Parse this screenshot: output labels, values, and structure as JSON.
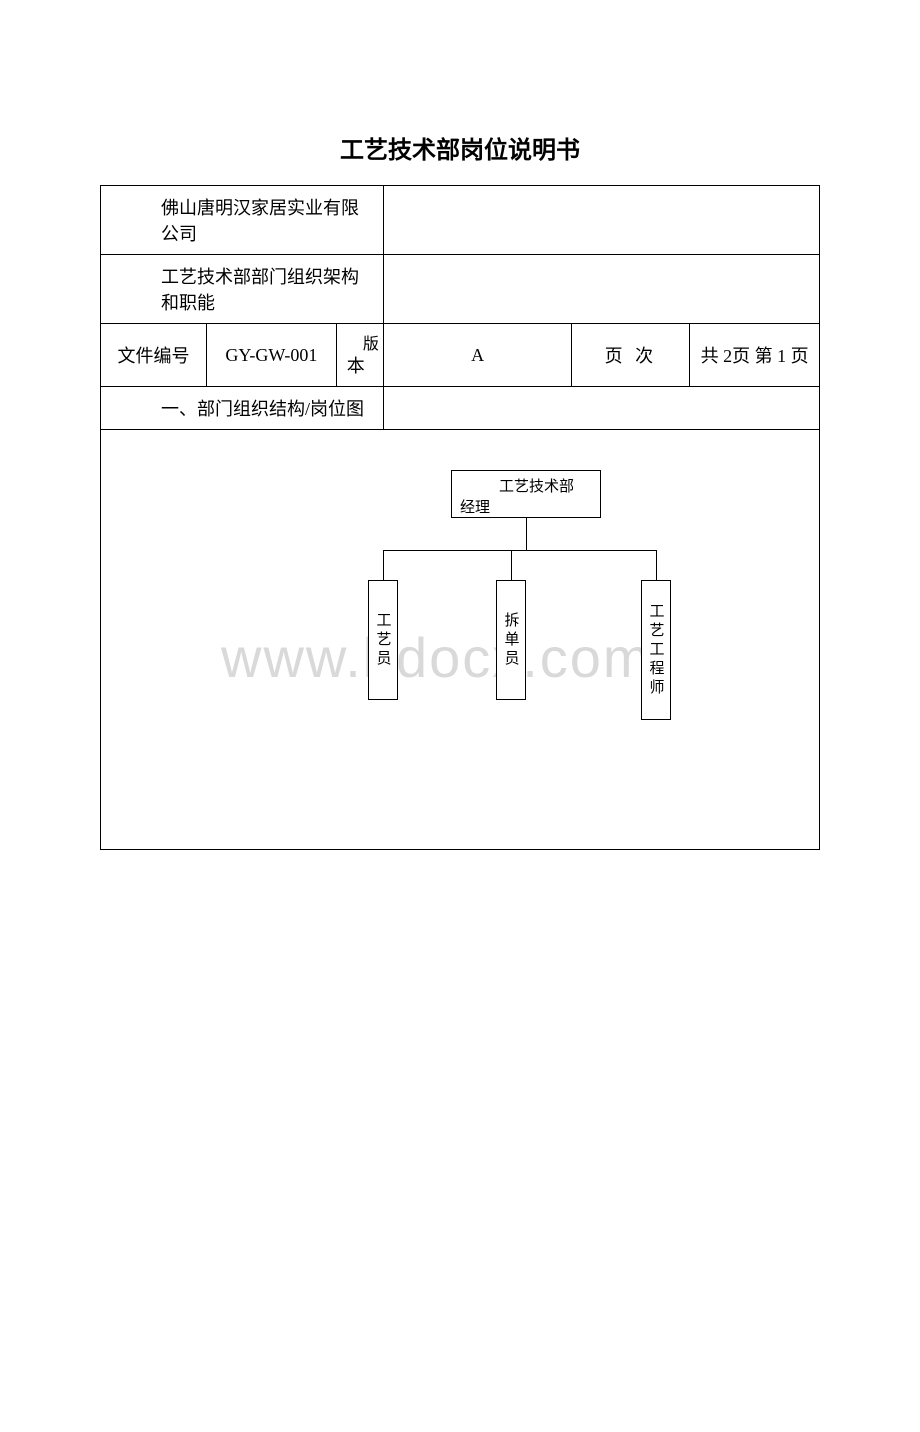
{
  "title": "工艺技术部岗位说明书",
  "company": "佛山唐明汉家居实业有限公司",
  "subtitle": "工艺技术部部门组织架构和职能",
  "meta": {
    "fileno_label": "文件编号",
    "fileno": "GY-GW-001",
    "version_label_top": "版",
    "version_label_bottom": "本",
    "version": "A",
    "page_label": "页 次",
    "page_total": "共 2页 第 1 页"
  },
  "section_heading": "一、部门组织结构/岗位图",
  "org": {
    "manager": {
      "line1": "工艺技术部",
      "line2": "经理"
    },
    "nodes": {
      "left": "工艺员",
      "mid": "拆单员",
      "right": "工艺工程师"
    }
  },
  "watermark": "www.bdocx.com",
  "colors": {
    "border": "#000000",
    "background": "#ffffff",
    "watermark": "#d9d9d9"
  },
  "chart_style": {
    "type": "tree",
    "box_border_width": 1,
    "box_fontsize": 15,
    "line_width": 1,
    "vertical_text_orientation": "upright"
  }
}
